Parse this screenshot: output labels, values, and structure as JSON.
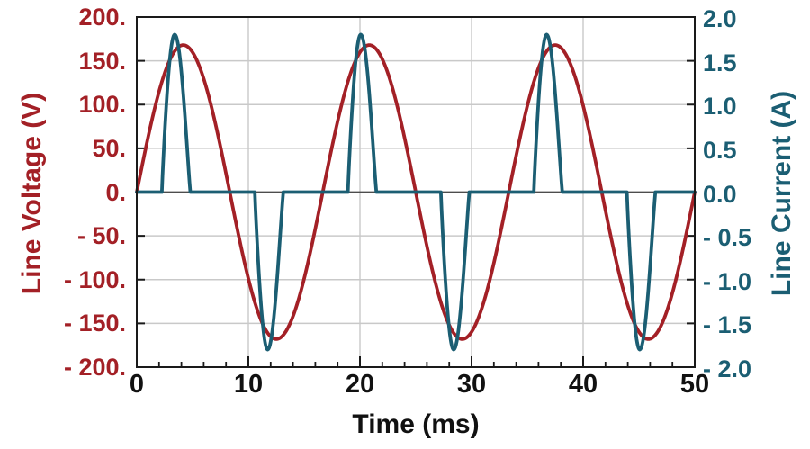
{
  "chart_data": {
    "type": "line",
    "title": "",
    "description": "AC line voltage sine wave with peaky rectifier line-current pulses over three 60 Hz cycles",
    "x": {
      "label": "Time (ms)",
      "min": 0,
      "max": 50,
      "major_ticks": [
        0,
        10,
        20,
        30,
        40,
        50
      ],
      "tick_labels": [
        "0",
        "10",
        "20",
        "30",
        "40",
        "50"
      ],
      "minor_tick_step": 2
    },
    "y_left": {
      "label": "Line Voltage (V)",
      "min": -200,
      "max": 200,
      "ticks": [
        200,
        150,
        100,
        50,
        0,
        -50,
        -100,
        -150,
        -200
      ],
      "tick_labels": [
        "200.",
        "150.",
        "100.",
        "50.",
        "0.",
        "- 50.",
        "- 100.",
        "- 150.",
        "- 200."
      ],
      "color": "#a32026"
    },
    "y_right": {
      "label": "Line Current (A)",
      "min": -2.0,
      "max": 2.0,
      "ticks": [
        2.0,
        1.5,
        1.0,
        0.5,
        0.0,
        -0.5,
        -1.0,
        -1.5,
        -2.0
      ],
      "tick_labels": [
        "2.0",
        "1.5",
        "1.0",
        "0.5",
        "0.0",
        "- 0.5",
        "- 1.0",
        "- 1.5",
        "- 2.0"
      ],
      "color": "#1b5e73"
    },
    "grid": {
      "major_x": [
        10,
        20,
        30,
        40
      ],
      "major_y_volts": [
        150,
        100,
        50,
        -50,
        -100,
        -150
      ],
      "grid_color": "#c9c9c9",
      "zero_line_color": "#4d4d4d",
      "box_color": "#1a1a1a"
    },
    "series": [
      {
        "name": "Line Voltage",
        "axis": "left",
        "color": "#a32026",
        "waveform": "sine",
        "amplitude_V": 168,
        "period_ms": 16.667,
        "frequency_hz": 60,
        "phase_deg": 0
      },
      {
        "name": "Line Current",
        "axis": "right",
        "color": "#1b5e73",
        "waveform": "rectifier-pulses",
        "baseline_A": 0,
        "peak_A": 1.8,
        "pulses": [
          {
            "t_start": 2.25,
            "t_peak": 3.4,
            "t_end": 4.8,
            "peak": 1.8
          },
          {
            "t_start": 10.58,
            "t_peak": 11.73,
            "t_end": 13.13,
            "peak": -1.8
          },
          {
            "t_start": 18.92,
            "t_peak": 20.07,
            "t_end": 21.47,
            "peak": 1.8
          },
          {
            "t_start": 27.25,
            "t_peak": 28.4,
            "t_end": 29.8,
            "peak": -1.8
          },
          {
            "t_start": 35.58,
            "t_peak": 36.73,
            "t_end": 38.13,
            "peak": 1.8
          },
          {
            "t_start": 43.92,
            "t_peak": 45.07,
            "t_end": 46.47,
            "peak": -1.8
          }
        ]
      }
    ],
    "legend": {
      "visible": false
    }
  }
}
